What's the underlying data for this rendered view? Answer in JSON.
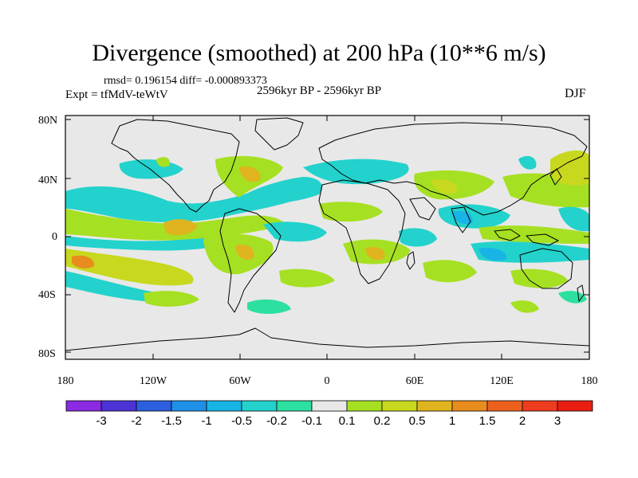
{
  "title": "Divergence (smoothed) at 200 hPa (10**6 m/s)",
  "stats": "rmsd= 0.196154  diff= -0.000893373",
  "expt": "Expt = tfMdV-teWtV",
  "period": "2596kyr BP - 2596kyr BP",
  "season": "DJF",
  "axes": {
    "lat_labels": [
      "80N",
      "40N",
      "0",
      "40S",
      "80S"
    ],
    "lon_labels": [
      "180",
      "120W",
      "60W",
      "0",
      "60E",
      "120E",
      "180"
    ]
  },
  "colorbar": {
    "labels": [
      "-3",
      "-2",
      "-1.5",
      "-1",
      "-0.5",
      "-0.2",
      "-0.1",
      "0.1",
      "0.2",
      "0.5",
      "1",
      "1.5",
      "2",
      "3"
    ],
    "colors": [
      "#8a2be2",
      "#4b33d6",
      "#2c5fe0",
      "#1e90e8",
      "#19b4e6",
      "#23d2cc",
      "#2ce0a0",
      "#e8e8e8",
      "#a6e022",
      "#c8d81e",
      "#e0b41e",
      "#e88c1e",
      "#ec601e",
      "#ee3c1e",
      "#e81e12"
    ]
  },
  "colors": {
    "background": "#e8e8e8",
    "pos_weak": "#a6e022",
    "pos_mid": "#c8d81e",
    "pos_strong": "#e0b41e",
    "pos_peak": "#e88c1e",
    "neg_weak": "#2ce0a0",
    "neg_mid": "#23d2cc",
    "neg_strong": "#19b4e6"
  }
}
